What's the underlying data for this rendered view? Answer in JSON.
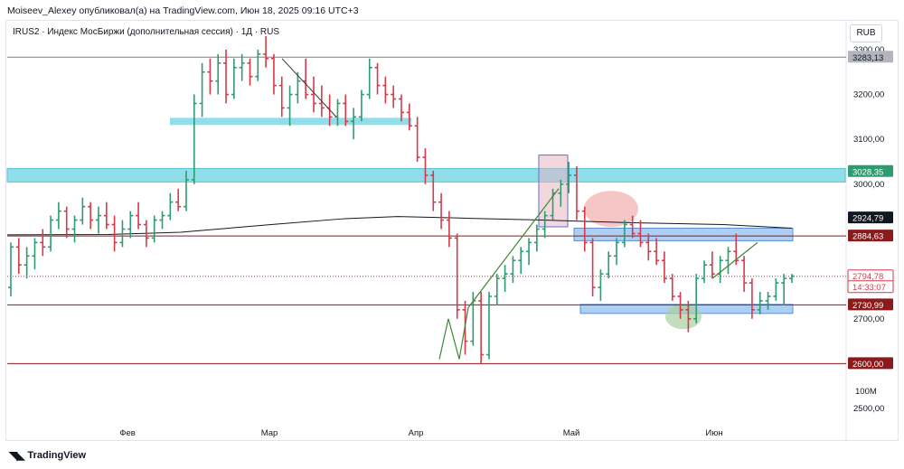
{
  "header": {
    "published_by": "Moiseev_Alexey опубликовал(а) на TradingView.com, Июн 18, 2025 09:16 UTC+3"
  },
  "symbol_line": "IRUS2 · Индекс МосБиржи (дополнительная сессия) · 1Д · RUS",
  "currency": "RUB",
  "footer": {
    "brand": "TradingView"
  },
  "colors": {
    "up": "#2e9c71",
    "down": "#d63a4a",
    "zone_cyan": "#7dd8e6",
    "zone_blue": "#9fc7f2",
    "ma_line": "#131722",
    "support_red": "#8b1a1a",
    "trend_green": "#3a8a30"
  },
  "chart_data": {
    "type": "ohlc",
    "x_axis_labels": [
      "Фев",
      "Мар",
      "Апр",
      "Май",
      "Июн"
    ],
    "y_tick_labels": [
      "3300,00",
      "3200,00",
      "3100,00",
      "3000,00",
      "2700,00",
      "2500,00"
    ],
    "y_range": [
      2480,
      3330
    ],
    "volume_label": "100M",
    "price_labels": [
      {
        "value": 3283.13,
        "text": "3283,13",
        "style": "gray"
      },
      {
        "value": 3028.35,
        "text": "3028,35",
        "style": "green"
      },
      {
        "value": 2924.79,
        "text": "2924,79",
        "style": "black"
      },
      {
        "value": 2884.63,
        "text": "2884,63",
        "style": "darkred"
      },
      {
        "value": 2794.78,
        "text": "2794,78",
        "style": "red"
      },
      {
        "value": 2770,
        "text": "14:33:07",
        "style": "red"
      },
      {
        "value": 2730.99,
        "text": "2730,99",
        "style": "darkred"
      },
      {
        "value": 2600.0,
        "text": "2600,00",
        "style": "darkred"
      }
    ],
    "horizontal_lines": [
      {
        "value": 3283.13,
        "color": "#808080"
      },
      {
        "value": 2884.63,
        "color": "#8b1a1a"
      },
      {
        "value": 2730.99,
        "color": "#8b1a1a"
      },
      {
        "value": 2600.0,
        "color": "#8b1a1a"
      }
    ],
    "last_price": 2794.78,
    "bars": [
      [
        2770,
        2870,
        2750,
        2860
      ],
      [
        2860,
        2880,
        2800,
        2820
      ],
      [
        2820,
        2860,
        2790,
        2840
      ],
      [
        2840,
        2880,
        2810,
        2870
      ],
      [
        2870,
        2900,
        2840,
        2860
      ],
      [
        2860,
        2930,
        2850,
        2920
      ],
      [
        2920,
        2960,
        2900,
        2940
      ],
      [
        2940,
        2950,
        2880,
        2900
      ],
      [
        2900,
        2930,
        2870,
        2920
      ],
      [
        2920,
        2970,
        2910,
        2950
      ],
      [
        2950,
        2960,
        2900,
        2920
      ],
      [
        2920,
        2950,
        2890,
        2930
      ],
      [
        2930,
        2960,
        2900,
        2910
      ],
      [
        2910,
        2930,
        2850,
        2870
      ],
      [
        2870,
        2920,
        2860,
        2900
      ],
      [
        2900,
        2940,
        2880,
        2930
      ],
      [
        2930,
        2960,
        2900,
        2910
      ],
      [
        2910,
        2920,
        2860,
        2880
      ],
      [
        2880,
        2930,
        2870,
        2920
      ],
      [
        2920,
        2940,
        2900,
        2930
      ],
      [
        2930,
        2980,
        2920,
        2960
      ],
      [
        2960,
        2990,
        2940,
        2950
      ],
      [
        2950,
        3030,
        2940,
        3010
      ],
      [
        3010,
        3200,
        3000,
        3180
      ],
      [
        3180,
        3270,
        3150,
        3250
      ],
      [
        3250,
        3280,
        3200,
        3230
      ],
      [
        3230,
        3290,
        3200,
        3270
      ],
      [
        3270,
        3300,
        3180,
        3200
      ],
      [
        3200,
        3280,
        3190,
        3260
      ],
      [
        3260,
        3290,
        3230,
        3270
      ],
      [
        3270,
        3280,
        3220,
        3240
      ],
      [
        3240,
        3300,
        3230,
        3290
      ],
      [
        3290,
        3330,
        3260,
        3280
      ],
      [
        3280,
        3290,
        3200,
        3220
      ],
      [
        3220,
        3240,
        3150,
        3170
      ],
      [
        3170,
        3220,
        3130,
        3200
      ],
      [
        3200,
        3250,
        3180,
        3230
      ],
      [
        3230,
        3280,
        3190,
        3200
      ],
      [
        3200,
        3240,
        3160,
        3180
      ],
      [
        3180,
        3220,
        3150,
        3170
      ],
      [
        3170,
        3200,
        3130,
        3150
      ],
      [
        3150,
        3190,
        3130,
        3180
      ],
      [
        3180,
        3200,
        3130,
        3140
      ],
      [
        3140,
        3170,
        3100,
        3150
      ],
      [
        3150,
        3210,
        3140,
        3200
      ],
      [
        3200,
        3280,
        3190,
        3260
      ],
      [
        3260,
        3270,
        3200,
        3220
      ],
      [
        3220,
        3240,
        3180,
        3200
      ],
      [
        3200,
        3220,
        3170,
        3190
      ],
      [
        3190,
        3200,
        3140,
        3160
      ],
      [
        3160,
        3180,
        3120,
        3130
      ],
      [
        3130,
        3150,
        3050,
        3060
      ],
      [
        3060,
        3080,
        3000,
        3020
      ],
      [
        3020,
        3030,
        2940,
        2960
      ],
      [
        2960,
        2980,
        2900,
        2920
      ],
      [
        2920,
        2940,
        2860,
        2880
      ],
      [
        2880,
        2890,
        2700,
        2720
      ],
      [
        2720,
        2740,
        2620,
        2650
      ],
      [
        2650,
        2760,
        2640,
        2740
      ],
      [
        2740,
        2760,
        2600,
        2620
      ],
      [
        2620,
        2760,
        2610,
        2750
      ],
      [
        2750,
        2800,
        2730,
        2790
      ],
      [
        2790,
        2820,
        2760,
        2800
      ],
      [
        2800,
        2840,
        2780,
        2830
      ],
      [
        2830,
        2860,
        2800,
        2850
      ],
      [
        2850,
        2880,
        2820,
        2870
      ],
      [
        2870,
        2910,
        2850,
        2900
      ],
      [
        2900,
        2940,
        2880,
        2930
      ],
      [
        2930,
        2990,
        2920,
        2980
      ],
      [
        2980,
        3010,
        2950,
        3000
      ],
      [
        3000,
        3050,
        2980,
        3020
      ],
      [
        3020,
        3040,
        2920,
        2940
      ],
      [
        2940,
        2950,
        2850,
        2870
      ],
      [
        2870,
        2880,
        2750,
        2770
      ],
      [
        2770,
        2810,
        2740,
        2800
      ],
      [
        2800,
        2850,
        2790,
        2840
      ],
      [
        2840,
        2880,
        2820,
        2870
      ],
      [
        2870,
        2920,
        2860,
        2910
      ],
      [
        2910,
        2930,
        2880,
        2890
      ],
      [
        2890,
        2920,
        2860,
        2870
      ],
      [
        2870,
        2890,
        2830,
        2850
      ],
      [
        2850,
        2880,
        2820,
        2830
      ],
      [
        2830,
        2850,
        2780,
        2790
      ],
      [
        2790,
        2800,
        2740,
        2750
      ],
      [
        2750,
        2760,
        2700,
        2720
      ],
      [
        2720,
        2740,
        2670,
        2700
      ],
      [
        2700,
        2800,
        2690,
        2790
      ],
      [
        2790,
        2830,
        2780,
        2820
      ],
      [
        2820,
        2850,
        2790,
        2800
      ],
      [
        2800,
        2840,
        2780,
        2830
      ],
      [
        2830,
        2860,
        2800,
        2850
      ],
      [
        2850,
        2890,
        2820,
        2830
      ],
      [
        2830,
        2840,
        2760,
        2780
      ],
      [
        2780,
        2790,
        2700,
        2720
      ],
      [
        2720,
        2760,
        2710,
        2740
      ],
      [
        2740,
        2760,
        2720,
        2750
      ],
      [
        2750,
        2790,
        2740,
        2780
      ],
      [
        2780,
        2800,
        2730,
        2790
      ],
      [
        2790,
        2800,
        2780,
        2795
      ]
    ]
  }
}
